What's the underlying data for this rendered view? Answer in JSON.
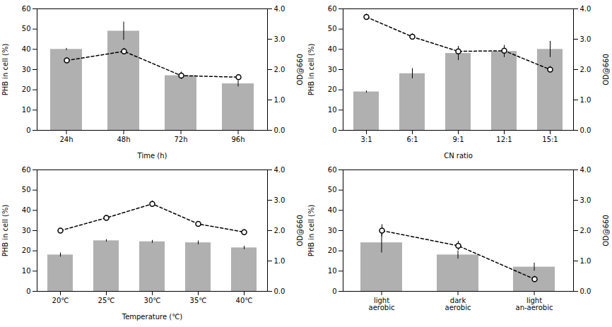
{
  "chart_data": [
    {
      "type": "bar",
      "categories": [
        "24h",
        "48h",
        "72h",
        "96h"
      ],
      "xlabel": "Time (h)",
      "ylabel": "PHB in cell (%)",
      "y2label": "OD@660",
      "ylim": [
        0,
        60
      ],
      "yticks": [
        0,
        10,
        20,
        30,
        40,
        50,
        60
      ],
      "y2lim": [
        0,
        4
      ],
      "y2ticks": [
        0,
        1,
        2,
        3,
        4
      ],
      "grid": false,
      "series": [
        {
          "type": "bar",
          "color": "#b0b0b0",
          "values": [
            40,
            49,
            27,
            23
          ],
          "errors": [
            0.5,
            4.5,
            1.5,
            1.5
          ]
        },
        {
          "type": "line",
          "axis": "y2",
          "color": "#000000",
          "marker": "circle",
          "line_style": "dashed",
          "values": [
            2.3,
            2.6,
            1.8,
            1.75
          ],
          "errors": [
            0.08,
            0.1,
            0.12,
            0.05
          ]
        }
      ]
    },
    {
      "type": "bar",
      "categories": [
        "3:1",
        "6:1",
        "9:1",
        "12:1",
        "15:1"
      ],
      "xlabel": "CN ratio",
      "ylabel": "PHB in cell (%)",
      "y2label": "OD@660",
      "ylim": [
        0,
        60
      ],
      "yticks": [
        0,
        10,
        20,
        30,
        40,
        50,
        60
      ],
      "y2lim": [
        0,
        4
      ],
      "y2ticks": [
        0,
        1,
        2,
        3,
        4
      ],
      "grid": false,
      "series": [
        {
          "type": "bar",
          "color": "#b0b0b0",
          "values": [
            19,
            28,
            38,
            39,
            40
          ],
          "errors": [
            0.5,
            2.5,
            3.5,
            3.0,
            4.0
          ]
        },
        {
          "type": "line",
          "axis": "y2",
          "color": "#000000",
          "marker": "circle",
          "line_style": "dashed",
          "values": [
            3.73,
            3.08,
            2.6,
            2.62,
            2.0
          ],
          "errors": [
            0.1,
            0.1,
            0.1,
            0.1,
            0.1
          ]
        }
      ]
    },
    {
      "type": "bar",
      "categories": [
        "20℃",
        "25℃",
        "30℃",
        "35℃",
        "40℃"
      ],
      "xlabel": "Temperature (℃)",
      "ylabel": "PHB in cell (%)",
      "y2label": "OD@660",
      "ylim": [
        0,
        60
      ],
      "yticks": [
        0,
        10,
        20,
        30,
        40,
        50,
        60
      ],
      "y2lim": [
        0,
        4
      ],
      "y2ticks": [
        0,
        1,
        2,
        3,
        4
      ],
      "grid": false,
      "series": [
        {
          "type": "bar",
          "color": "#b0b0b0",
          "values": [
            18,
            25,
            24.5,
            24,
            21.5
          ],
          "errors": [
            1.0,
            0.6,
            0.7,
            0.9,
            0.8
          ]
        },
        {
          "type": "line",
          "axis": "y2",
          "color": "#000000",
          "marker": "circle",
          "line_style": "dashed",
          "values": [
            2.0,
            2.42,
            2.88,
            2.22,
            1.95
          ],
          "errors": [
            0.08,
            0.08,
            0.1,
            0.08,
            0.08
          ]
        }
      ]
    },
    {
      "type": "bar",
      "categories": [
        "light\naerobic",
        "dark\naerobic",
        "light\nan-aerobic"
      ],
      "ylabel": "PHB in cell (%)",
      "y2label": "OD@660",
      "ylim": [
        0,
        60
      ],
      "yticks": [
        0,
        10,
        20,
        30,
        40,
        50,
        60
      ],
      "y2lim": [
        0,
        4
      ],
      "y2ticks": [
        0,
        1,
        2,
        3,
        4
      ],
      "grid": false,
      "series": [
        {
          "type": "bar",
          "color": "#b0b0b0",
          "values": [
            24,
            18,
            12
          ],
          "errors": [
            5.0,
            2.0,
            2.0
          ]
        },
        {
          "type": "line",
          "axis": "y2",
          "color": "#000000",
          "marker": "circle",
          "line_style": "dashed",
          "values": [
            2.0,
            1.5,
            0.4
          ],
          "errors": [
            0.2,
            0.15,
            0.1
          ]
        }
      ]
    }
  ]
}
